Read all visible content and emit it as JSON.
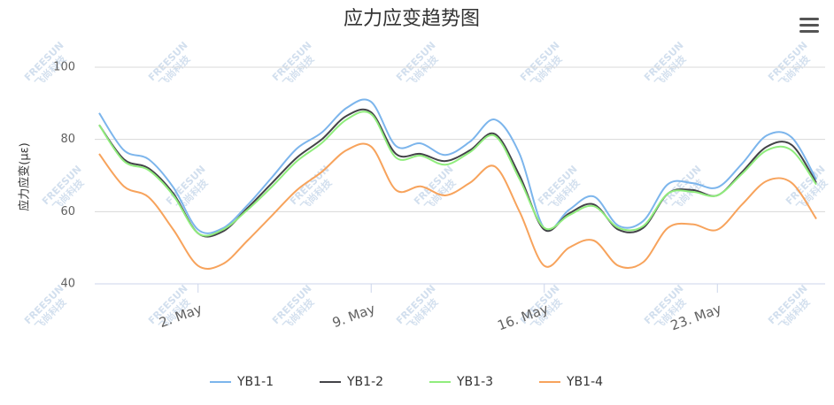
{
  "chart_data": {
    "type": "line",
    "title": "应力应变趋势图",
    "y_label": "应力应变(με)",
    "watermark": {
      "brand": "FREESUN",
      "sub": "飞尚科技"
    },
    "categories": [
      null,
      null,
      null,
      null,
      "2. May",
      null,
      null,
      null,
      null,
      null,
      null,
      "9. May",
      null,
      null,
      null,
      null,
      null,
      null,
      "16. May",
      null,
      null,
      null,
      null,
      null,
      null,
      "23. May",
      null,
      null,
      null,
      null
    ],
    "ylim": [
      40,
      100
    ],
    "yticks": [
      40,
      60,
      80,
      100
    ],
    "grid": true,
    "series": [
      {
        "name": "YB1-1",
        "color": "#7cb5ec",
        "values": [
          87.3,
          77,
          74.5,
          66.7,
          55,
          55.4,
          61.8,
          69.6,
          77.5,
          81.9,
          88.7,
          90.4,
          78.2,
          78.9,
          75.7,
          79.4,
          85.5,
          76,
          55.4,
          60.5,
          64.2,
          56.1,
          57.4,
          67.6,
          67.9,
          66.7,
          73.3,
          81.1,
          80.6,
          68.9
        ]
      },
      {
        "name": "YB1-2",
        "color": "#434348",
        "values": [
          84,
          74.5,
          72,
          65,
          54,
          54.5,
          61,
          68,
          75,
          80,
          86.5,
          87.5,
          76,
          76,
          74,
          77,
          81.5,
          70,
          55,
          59.5,
          62,
          55,
          55.5,
          65,
          66,
          64.5,
          71,
          78,
          78.5,
          68
        ]
      },
      {
        "name": "YB1-3",
        "color": "#90ed7d",
        "values": [
          84,
          74,
          71.5,
          64.5,
          54,
          55,
          60.5,
          67,
          74,
          79,
          85.5,
          87,
          75,
          75.5,
          73,
          76.5,
          81,
          69,
          55.5,
          59,
          61.5,
          55.5,
          56,
          65,
          65.5,
          64.5,
          70.5,
          77,
          77,
          67.5
        ]
      },
      {
        "name": "YB1-4",
        "color": "#f7a35c",
        "values": [
          76,
          67,
          64,
          55,
          45,
          45.5,
          52,
          59,
          66,
          71,
          77,
          78,
          66,
          67,
          64.5,
          68,
          72.5,
          60,
          45,
          50,
          52,
          45,
          46,
          55.5,
          56.5,
          55,
          62,
          68.5,
          68,
          58
        ]
      }
    ]
  }
}
